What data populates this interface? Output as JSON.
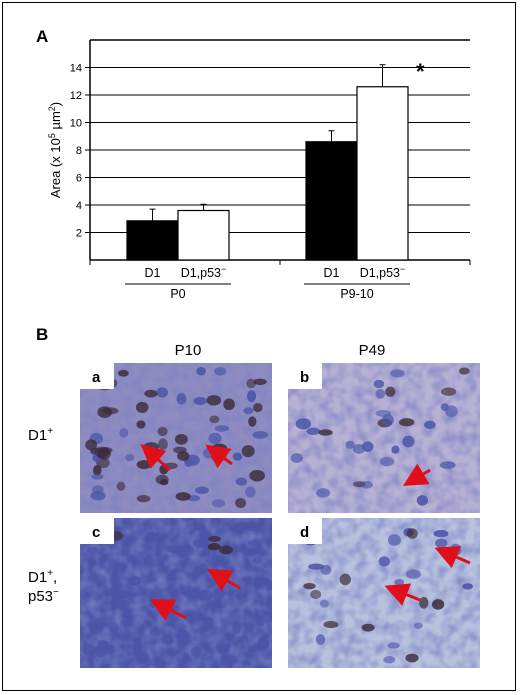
{
  "panel_a": {
    "label": "A"
  },
  "panel_b": {
    "label": "B",
    "columns": [
      "P10",
      "P49"
    ],
    "rows": [
      {
        "line1": "D1",
        "sup1": "+",
        "line2": "",
        "sup2": ""
      },
      {
        "line1": "D1",
        "sup1": "+",
        "line2": "p53",
        "sup2": "−"
      }
    ],
    "comma": ",",
    "tiles": [
      {
        "letter": "a",
        "tone": "dense"
      },
      {
        "letter": "b",
        "tone": "sparse"
      },
      {
        "letter": "c",
        "tone": "dark"
      },
      {
        "letter": "d",
        "tone": "light"
      }
    ],
    "colors": {
      "nucleus_blue": "#4a55a8",
      "brown_stain": "#3a2a35",
      "arrow": "#e0101a"
    }
  },
  "chart_data": {
    "type": "bar",
    "ylabel_prefix": "Area (x 10",
    "ylabel_exp": "5",
    "ylabel_unit": " µm",
    "ylabel_exp2": "2",
    "ylabel_suffix": ")",
    "ylim": [
      0,
      16
    ],
    "yticks": [
      2,
      4,
      6,
      8,
      10,
      12,
      14
    ],
    "grid": true,
    "groups": [
      {
        "name": "P0",
        "bars": [
          {
            "label": "D1",
            "value": 2.85,
            "error": 0.85,
            "fill": "#000000"
          },
          {
            "label": "D1,p53",
            "label_sup": "−",
            "value": 3.6,
            "error": 0.45,
            "fill": "#ffffff"
          }
        ]
      },
      {
        "name": "P9-10",
        "bars": [
          {
            "label": "D1",
            "value": 8.6,
            "error": 0.8,
            "fill": "#000000"
          },
          {
            "label": "D1,p53",
            "label_sup": "−",
            "value": 12.6,
            "error": 1.6,
            "fill": "#ffffff",
            "annotation": "*"
          }
        ]
      }
    ]
  }
}
